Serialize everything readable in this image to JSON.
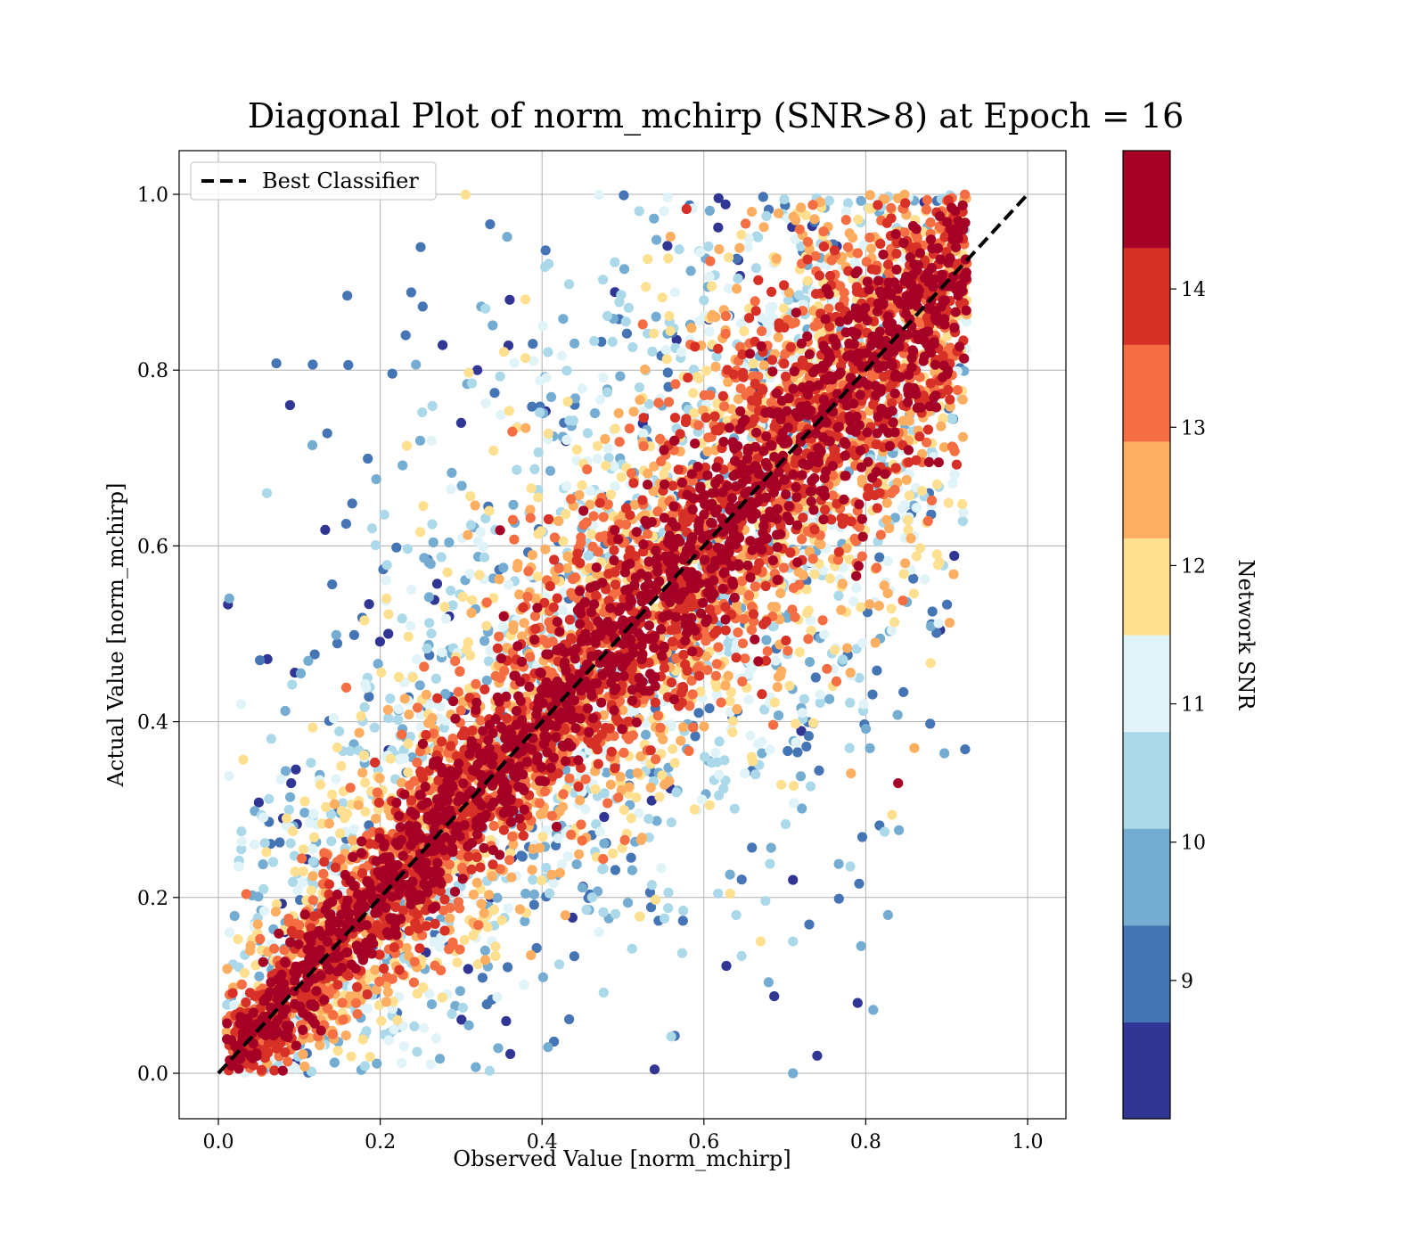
{
  "chart_data": {
    "type": "scatter",
    "title": "Diagonal Plot of norm_mchirp (SNR>8) at Epoch = 16",
    "xlabel": "Observed Value [norm_mchirp]",
    "ylabel": "Actual Value [norm_mchirp]",
    "xlim": [
      -0.05,
      1.05
    ],
    "ylim": [
      -0.05,
      1.05
    ],
    "xticks": [
      "0.0",
      "0.2",
      "0.4",
      "0.6",
      "0.8",
      "1.0"
    ],
    "yticks": [
      "0.0",
      "0.2",
      "0.4",
      "0.6",
      "0.8",
      "1.0"
    ],
    "grid": true,
    "legend": {
      "placement": "top-left",
      "entries": [
        {
          "label": "Best Classifier",
          "style": "dashed",
          "color": "#000000"
        }
      ]
    },
    "reference_line": {
      "label": "Best Classifier",
      "x": [
        0.0,
        1.0
      ],
      "y": [
        0.0,
        1.0
      ]
    },
    "colorbar": {
      "label": "Network SNR",
      "range": [
        8,
        15
      ],
      "ticks": [
        "9",
        "10",
        "11",
        "12",
        "13",
        "14"
      ],
      "tick_values": [
        9,
        10,
        11,
        12,
        13,
        14
      ],
      "bands": [
        "#313695",
        "#4575b4",
        "#74add1",
        "#abd9e9",
        "#e0f3f8",
        "#fee090",
        "#fdae61",
        "#f46d43",
        "#d73027",
        "#a50026"
      ]
    },
    "series": [
      {
        "description": "dense band of points around the diagonal; color encodes Network SNR",
        "sample_points": [
          {
            "x": 0.06,
            "y": 0.66,
            "snr": 10.5
          },
          {
            "x": 0.25,
            "y": 0.94,
            "snr": 9.0
          },
          {
            "x": 0.19,
            "y": 0.62,
            "snr": 10.5
          },
          {
            "x": 0.21,
            "y": 0.5,
            "snr": 8.5
          },
          {
            "x": 0.32,
            "y": 0.8,
            "snr": 8.5
          },
          {
            "x": 0.3,
            "y": 0.74,
            "snr": 8.5
          },
          {
            "x": 0.33,
            "y": 0.87,
            "snr": 10.5
          },
          {
            "x": 0.36,
            "y": 0.88,
            "snr": 8.5
          },
          {
            "x": 0.84,
            "y": 0.33,
            "snr": 14.5
          },
          {
            "x": 0.79,
            "y": 0.08,
            "snr": 8.5
          },
          {
            "x": 0.74,
            "y": 0.02,
            "snr": 8.5
          },
          {
            "x": 0.86,
            "y": 0.37,
            "snr": 12.5
          },
          {
            "x": 0.71,
            "y": 0.22,
            "snr": 8.5
          },
          {
            "x": 0.67,
            "y": 0.15,
            "snr": 11.5
          },
          {
            "x": 0.71,
            "y": 0.15,
            "snr": 10.5
          },
          {
            "x": 0.64,
            "y": 0.18,
            "snr": 10.5
          },
          {
            "x": 0.78,
            "y": 0.37,
            "snr": 10.5
          },
          {
            "x": 0.09,
            "y": 0.33,
            "snr": 8.5
          },
          {
            "x": 0.08,
            "y": 0.29,
            "snr": 8.5
          },
          {
            "x": 0.71,
            "y": 0.0,
            "snr": 9.5
          }
        ]
      }
    ]
  }
}
